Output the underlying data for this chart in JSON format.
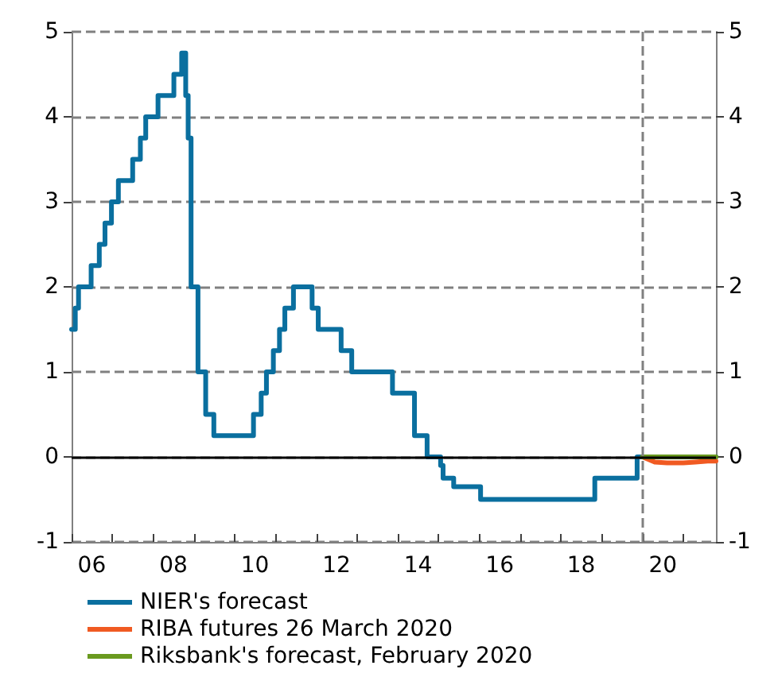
{
  "chart_data": {
    "type": "step",
    "xlim": [
      "2006-01-01",
      "2021-10-20"
    ],
    "xticks": [
      {
        "value": "2006",
        "label": null
      },
      {
        "value": "2007",
        "label": null
      },
      {
        "value": "2008",
        "label": null
      },
      {
        "value": "2009",
        "label": null
      },
      {
        "value": "2010",
        "label": null
      },
      {
        "value": "2011",
        "label": null
      },
      {
        "value": "2012",
        "label": null
      },
      {
        "value": "2013",
        "label": null
      },
      {
        "value": "2014",
        "label": null
      },
      {
        "value": "2015",
        "label": null
      },
      {
        "value": "2016",
        "label": null
      },
      {
        "value": "2017",
        "label": null
      },
      {
        "value": "2018",
        "label": null
      },
      {
        "value": "2019",
        "label": null
      },
      {
        "value": "2020",
        "label": null
      },
      {
        "value": "2021",
        "label": null
      },
      {
        "value": "2006-07-01",
        "label": "06"
      },
      {
        "value": "2008-07-01",
        "label": "08"
      },
      {
        "value": "2010-07-01",
        "label": "10"
      },
      {
        "value": "2012-07-01",
        "label": "12"
      },
      {
        "value": "2014-07-01",
        "label": "14"
      },
      {
        "value": "2016-07-01",
        "label": "16"
      },
      {
        "value": "2018-07-01",
        "label": "18"
      },
      {
        "value": "2020-07-01",
        "label": "20"
      }
    ],
    "ylim": [
      -1,
      5
    ],
    "yticks": [
      -1,
      0,
      1,
      2,
      3,
      4,
      5
    ],
    "y2lim": [
      -1,
      5
    ],
    "y2ticks": [
      -1,
      0,
      1,
      2,
      3,
      4,
      5
    ],
    "grid": "y",
    "legend": "bottom left",
    "line_style": "solid",
    "marker": "none",
    "ref_lines": [
      {
        "axis": "x",
        "value": "2020-01-01",
        "color": "#808080",
        "line_style": "dashed"
      },
      {
        "axis": "y",
        "value": 0,
        "color": "#000000",
        "line_style": "solid"
      }
    ],
    "series": [
      {
        "name": "NIER's forecast",
        "color": "#0a6f9f",
        "x": [
          "2006-01-01",
          "2006-02-03",
          "2006-03-04",
          "2006-06-25",
          "2006-09-06",
          "2006-10-27",
          "2006-12-24",
          "2007-02-24",
          "2007-07-02",
          "2007-09-09",
          "2007-10-27",
          "2008-02-14",
          "2008-07-05",
          "2008-09-13",
          "2008-10-19",
          "2008-11-10",
          "2008-12-06",
          "2009-02-06",
          "2009-04-16",
          "2009-06-28",
          "2010-06-18",
          "2010-08-26",
          "2010-10-12",
          "2010-12-13",
          "2011-02-06",
          "2011-03-26",
          "2011-06-11",
          "2011-11-25",
          "2012-01-19",
          "2012-08-11",
          "2012-11-14",
          "2013-11-14",
          "2014-05-30",
          "2014-09-20",
          "2015-01-19",
          "2015-02-10",
          "2015-05-16",
          "2016-01-12",
          "2018-10-31",
          "2019-11-14",
          "2021-10-20"
        ],
        "values": [
          1.5,
          1.75,
          2.0,
          2.25,
          2.5,
          2.75,
          3.0,
          3.25,
          3.5,
          3.75,
          4.0,
          4.25,
          4.5,
          4.75,
          4.25,
          3.75,
          2.0,
          1.0,
          0.5,
          0.25,
          0.5,
          0.75,
          1.0,
          1.25,
          1.5,
          1.75,
          2.0,
          1.75,
          1.5,
          1.25,
          1.0,
          0.75,
          0.25,
          0.0,
          -0.1,
          -0.25,
          -0.35,
          -0.5,
          -0.25,
          0.0,
          0.0
        ]
      },
      {
        "name": "RIBA futures 26 March 2020",
        "type": "line",
        "color": "#f05a22",
        "x": [
          "2020-01-01",
          "2020-02-25",
          "2020-04-20",
          "2020-08-08",
          "2021-01-01",
          "2021-04-20",
          "2021-08-08",
          "2021-10-20"
        ],
        "values": [
          0,
          -0.03,
          -0.06,
          -0.07,
          -0.07,
          -0.06,
          -0.05,
          -0.05
        ]
      },
      {
        "name": "Riksbank's forecast, February 2020",
        "type": "line",
        "color": "#6a9a1f",
        "x": [
          "2020-01-01",
          "2021-10-20"
        ],
        "values": [
          0,
          0
        ]
      }
    ]
  }
}
